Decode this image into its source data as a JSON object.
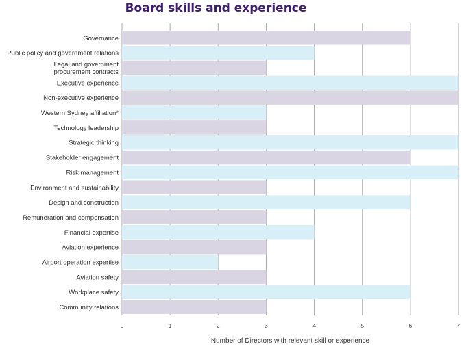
{
  "colors": {
    "bar_dark": "#d9d5e3",
    "bar_light": "#d8eff8",
    "grid": "#a9a9a9",
    "title": "#3d1f6b"
  },
  "chart_data": {
    "type": "bar",
    "orientation": "horizontal",
    "title": "Board skills and experience",
    "xlabel": "Number of Directors with relevant skill or experience",
    "ylabel": "",
    "xlim": [
      0,
      7
    ],
    "xticks": [
      0,
      1,
      2,
      3,
      4,
      5,
      6,
      7
    ],
    "grid": true,
    "categories": [
      "Governance",
      "Public policy and government relations",
      "Legal and government\nprocurement contracts",
      "Executive experience",
      "Non-executive experience",
      "Western Sydney affiliation*",
      "Technology leadership",
      "Strategic thinking",
      "Stakeholder engagement",
      "Risk management",
      "Environment and sustainability",
      "Design and construction",
      "Remuneration and compensation",
      "Financial expertise",
      "Aviation experience",
      "Airport operation expertise",
      "Aviation safety",
      "Workplace safety",
      "Community relations"
    ],
    "values": [
      6,
      4,
      3,
      7,
      7,
      3,
      3,
      7,
      6,
      7,
      3,
      6,
      3,
      4,
      3,
      2,
      3,
      6,
      3
    ]
  }
}
